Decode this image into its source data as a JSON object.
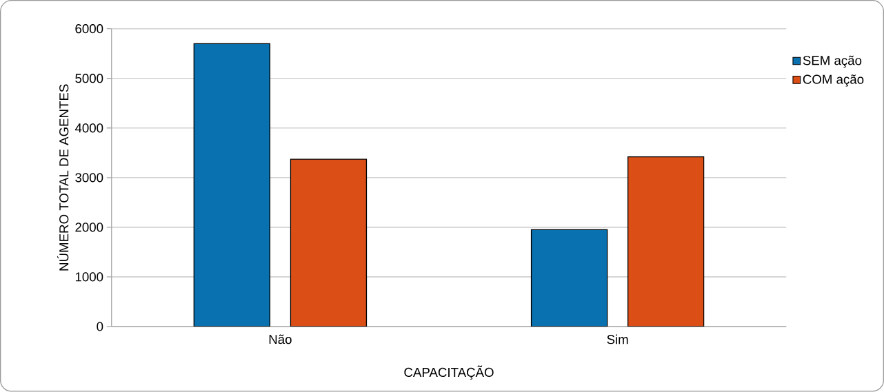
{
  "chart_data": {
    "type": "bar",
    "xlabel": "CAPACITAÇÃO",
    "ylabel": "NÚMERO TOTAL DE AGENTES",
    "categories": [
      "Não",
      "Sim"
    ],
    "series": [
      {
        "name": "SEM ação",
        "color": "#0a71b1",
        "values": [
          5700,
          1950
        ]
      },
      {
        "name": "COM ação",
        "color": "#db4f17",
        "values": [
          3370,
          3420
        ]
      }
    ],
    "ylim": [
      0,
      6000
    ],
    "yticks": [
      0,
      1000,
      2000,
      3000,
      4000,
      5000,
      6000
    ],
    "grid": "y",
    "legend": "right"
  }
}
